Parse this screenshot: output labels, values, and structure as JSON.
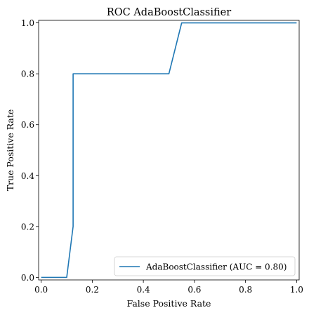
{
  "chart_data": {
    "type": "line",
    "title": "ROC AdaBoostClassifier",
    "xlabel": "False Positive Rate",
    "ylabel": "True Positive Rate",
    "xlim": [
      -0.01,
      1.01
    ],
    "ylim": [
      -0.01,
      1.01
    ],
    "x_ticks": [
      "0.0",
      "0.2",
      "0.4",
      "0.6",
      "0.8",
      "1.0"
    ],
    "y_ticks": [
      "0.0",
      "0.2",
      "0.4",
      "0.6",
      "0.8",
      "1.0"
    ],
    "grid": false,
    "legend_position": "bottom-right",
    "colors": {
      "series": "#1f77b4",
      "axes": "#000000",
      "legend_border": "#cccccc"
    },
    "series": [
      {
        "name": "AdaBoostClassifier (AUC = 0.80)",
        "x": [
          0.0,
          0.1,
          0.125,
          0.125,
          0.125,
          0.5,
          0.55,
          1.0
        ],
        "y": [
          0.0,
          0.0,
          0.2,
          0.2,
          0.8,
          0.8,
          1.0,
          1.0
        ]
      }
    ]
  }
}
